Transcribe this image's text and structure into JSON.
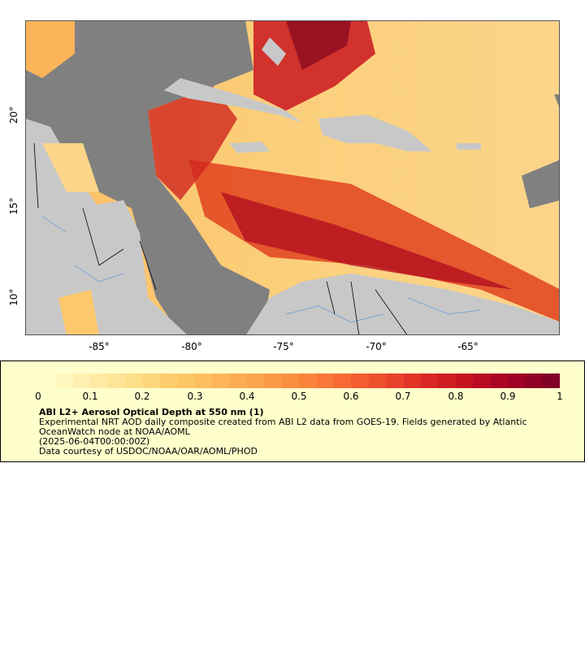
{
  "map": {
    "lon_ticks": [
      "-85°",
      "-80°",
      "-75°",
      "-70°",
      "-65°"
    ],
    "lat_ticks": [
      "20°",
      "15°",
      "10°"
    ],
    "extent": {
      "lon": [
        -89,
        -60
      ],
      "lat": [
        8,
        25.2
      ]
    },
    "colors": {
      "land": "#c8c8c8",
      "no_data": "#808080",
      "ocean_low": "#fcd58c",
      "ocean_high": "#8b0a1e",
      "rivers": "#7aa6d6",
      "borders": "#000000"
    }
  },
  "legend": {
    "colorbar_ticks": [
      "0",
      "0.1",
      "0.2",
      "0.3",
      "0.4",
      "0.5",
      "0.6",
      "0.7",
      "0.8",
      "0.9",
      "1"
    ],
    "title": "ABI L2+ Aerosol Optical Depth at 550 nm (1)",
    "line1": "Experimental NRT AOD daily composite created from ABI L2 data from GOES-19. Fields generated by Atlantic OceanWatch node at NOAA/AOML",
    "line2": "(2025-06-04T00:00:00Z)",
    "line3": "Data courtesy of USDOC/NOAA/OAR/AOML/PHOD",
    "colorscale": [
      "#ffffcc",
      "#ffedaa",
      "#fee08b",
      "#fdcc6c",
      "#fdb85a",
      "#fca34a",
      "#fb8a3e",
      "#f76b35",
      "#ed4b2c",
      "#dc2a25",
      "#c3121f",
      "#a50026",
      "#800026"
    ]
  }
}
